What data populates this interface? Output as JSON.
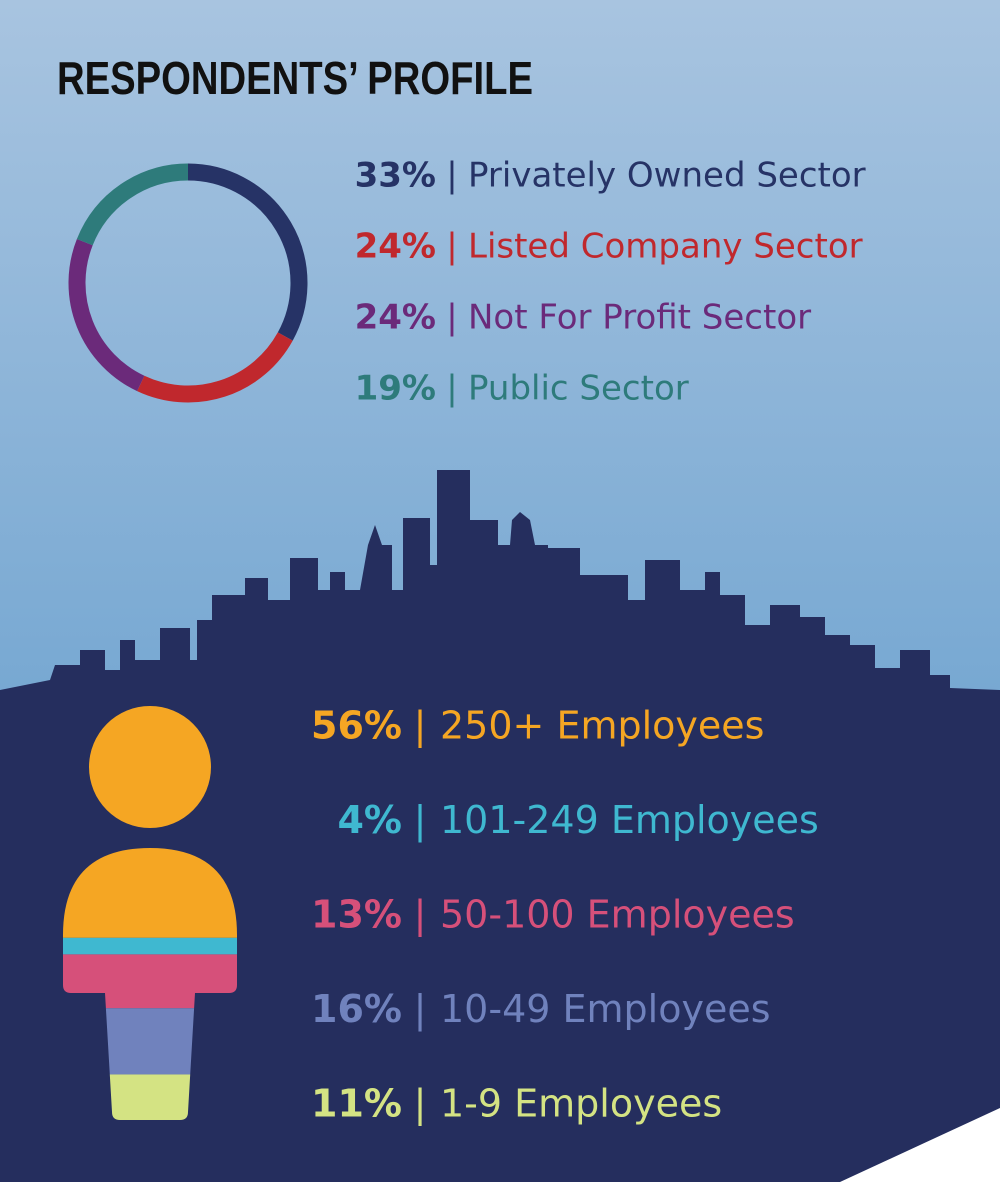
{
  "title": "RESPONDENTS’ PROFILE",
  "separator": "|",
  "chart_data": [
    {
      "type": "donut",
      "categories": [
        "Privately Owned Sector",
        "Listed Company Sector",
        "Not For Profit Sector",
        "Public Sector"
      ],
      "values": [
        33,
        24,
        24,
        19
      ],
      "value_labels": [
        "33%",
        "24%",
        "24%",
        "19%"
      ],
      "colors": [
        "#263366",
        "#c0282d",
        "#6b2a7a",
        "#2e7b7b"
      ]
    },
    {
      "type": "person",
      "categories": [
        "250+ Employees",
        "101-249 Employees",
        "50-100 Employees",
        "10-49 Employees",
        "1-9 Employees"
      ],
      "values": [
        56,
        4,
        13,
        16,
        11
      ],
      "value_labels": [
        "56%",
        "4%",
        "13%",
        "16%",
        "11%"
      ],
      "colors": [
        "#f5a623",
        "#3fb8d0",
        "#d6507a",
        "#7082bd",
        "#d4e383"
      ]
    }
  ]
}
